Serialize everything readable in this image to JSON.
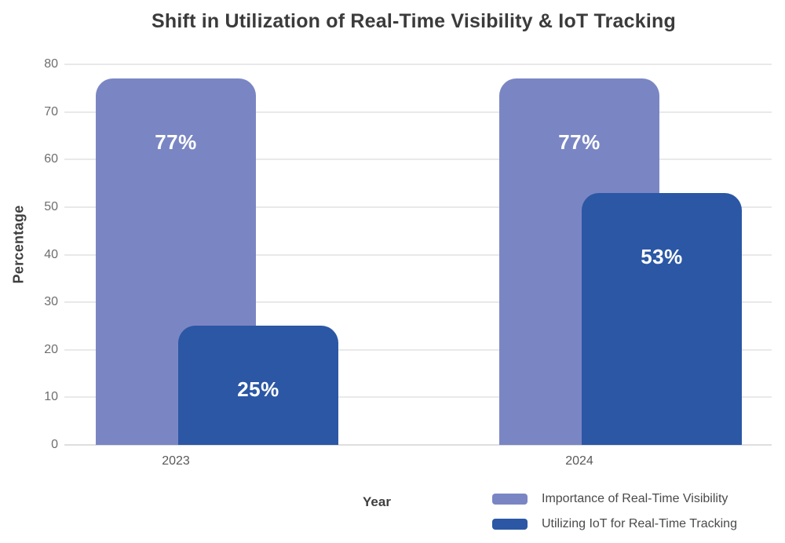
{
  "chart_data": {
    "type": "bar",
    "title": "Shift in Utilization of Real-Time Visibility & IoT Tracking",
    "xlabel": "Year",
    "ylabel": "Percentage",
    "categories": [
      "2023",
      "2024"
    ],
    "series": [
      {
        "name": "Importance of Real-Time Visibility",
        "color": "#7a86c3",
        "values": [
          77,
          77
        ],
        "value_labels": [
          "77%",
          "77%"
        ]
      },
      {
        "name": "Utilizing IoT for Real-Time Tracking",
        "color": "#2b57a5",
        "values": [
          25,
          53
        ],
        "value_labels": [
          "25%",
          "53%"
        ]
      }
    ],
    "ylim": [
      0,
      80
    ],
    "yticks": [
      0,
      10,
      20,
      30,
      40,
      50,
      60,
      70,
      80
    ],
    "grid": true,
    "legend_position": "bottom-right",
    "value_label_color": "#ffffff",
    "bar_style": "overlapping-rounded-top"
  }
}
